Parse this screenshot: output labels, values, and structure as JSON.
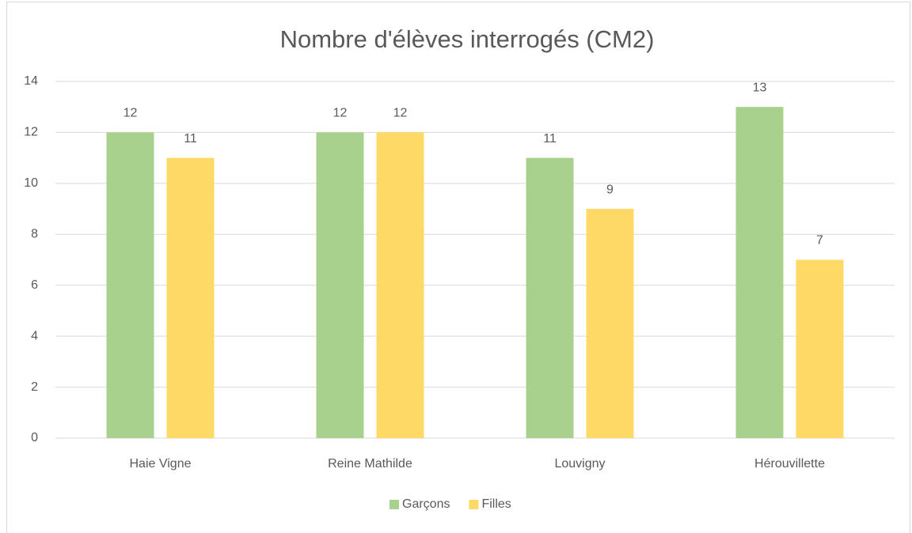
{
  "chart_data": {
    "type": "bar",
    "title": "Nombre d'élèves interrogés (CM2)",
    "categories": [
      "Haie Vigne",
      "Reine Mathilde",
      "Louvigny",
      "Hérouvillette"
    ],
    "series": [
      {
        "name": "Garçons",
        "color": "#a9d18e",
        "values": [
          12,
          12,
          11,
          13
        ]
      },
      {
        "name": "Filles",
        "color": "#ffd966",
        "values": [
          11,
          12,
          9,
          7
        ]
      }
    ],
    "ylim": [
      0,
      14
    ],
    "yticks": [
      0,
      2,
      4,
      6,
      8,
      10,
      12,
      14
    ],
    "grid": true,
    "legend": "bottom"
  }
}
